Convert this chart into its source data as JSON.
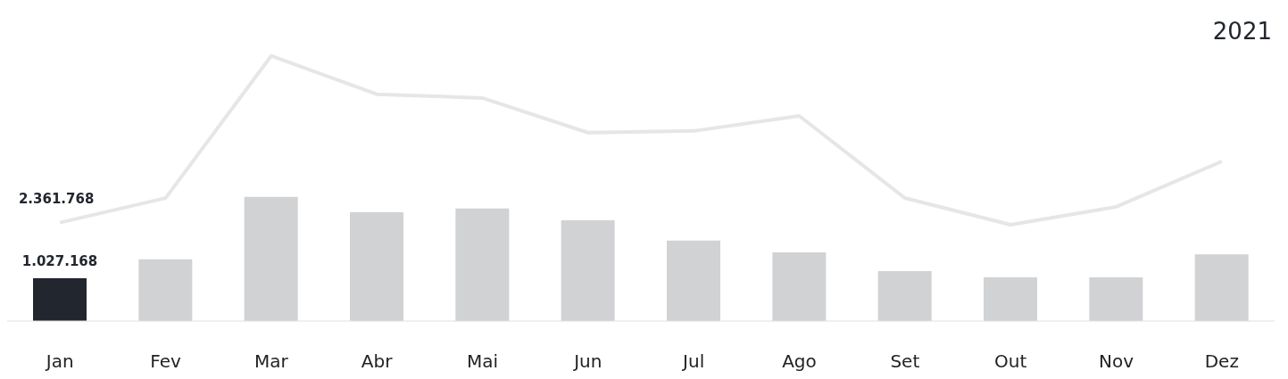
{
  "chart_data": {
    "type": "bar",
    "title": "2021",
    "categories": [
      "Jan",
      "Fev",
      "Mar",
      "Abr",
      "Mai",
      "Jun",
      "Jul",
      "Ago",
      "Set",
      "Out",
      "Nov",
      "Dez"
    ],
    "tick_labels": "x",
    "grid": false,
    "legend": false,
    "marker": "none",
    "line_style": "solid",
    "series": [
      {
        "colors": [
          "#22262e",
          "#d1d2d4",
          "#d1d2d4",
          "#d1d2d4",
          "#d1d2d4",
          "#d1d2d4",
          "#d1d2d4",
          "#d1d2d4",
          "#d1d2d4",
          "#d1d2d4",
          "#d1d2d4",
          "#d1d2d4"
        ],
        "values": [
          1027168,
          1480000,
          2980000,
          2610000,
          2700000,
          2420000,
          1930000,
          1650000,
          1200000,
          1050000,
          1050000,
          1600000
        ],
        "value_labels": [
          "1.027.168",
          null,
          null,
          null,
          null,
          null,
          null,
          null,
          null,
          null,
          null,
          null
        ]
      },
      {
        "type": "line",
        "color": "#e6e6e6",
        "values": [
          2361768,
          2950000,
          6360000,
          5440000,
          5350000,
          4520000,
          4560000,
          4920000,
          2950000,
          2310000,
          2740000,
          3830000
        ],
        "value_labels": [
          "2.361.768",
          null,
          null,
          null,
          null,
          null,
          null,
          null,
          null,
          null,
          null,
          null
        ]
      }
    ]
  }
}
